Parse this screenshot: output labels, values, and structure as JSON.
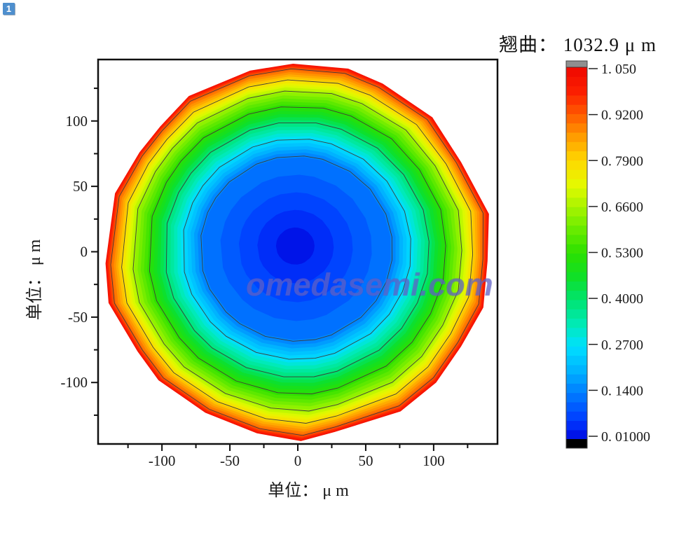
{
  "page": {
    "badge": "1"
  },
  "header": {
    "title": "翘曲： 1032.9 μ m"
  },
  "watermark": {
    "text": "omedasemi.com"
  },
  "chart_data": {
    "type": "filled_contour",
    "title": "翘曲： 1032.9 μ m",
    "value_name": "翘曲",
    "value": 1032.9,
    "value_unit": "μm",
    "xlabel": "单位： μ m",
    "ylabel": "单位： μ m",
    "xlim": [
      -147,
      147
    ],
    "ylim": [
      -147,
      147
    ],
    "x_ticks": [
      -100,
      -50,
      0,
      50,
      100
    ],
    "y_ticks": [
      100,
      50,
      0,
      -50,
      -100
    ],
    "minor_ticks": [
      -125,
      -75,
      -25,
      25,
      75,
      125
    ],
    "grid": false,
    "legend_position": "right-colorbar",
    "colorbar": {
      "tick_labels": [
        "1. 050",
        "0. 9200",
        "0. 7900",
        "0. 6600",
        "0. 5300",
        "0. 4000",
        "0. 2700",
        "0. 1400",
        "0. 01000"
      ],
      "tick_values": [
        1.05,
        0.92,
        0.79,
        0.66,
        0.53,
        0.4,
        0.27,
        0.14,
        0.01
      ],
      "vmin": 0.01,
      "vmax": 1.05,
      "above_max_color": "#8f8f8f",
      "below_min_color": "#000000",
      "segments": 40
    },
    "radial_profile": [
      [
        0.01,
        0
      ],
      [
        0.14,
        71
      ],
      [
        0.27,
        84.6
      ],
      [
        0.4,
        98
      ],
      [
        0.53,
        110.5
      ],
      [
        0.66,
        123
      ],
      [
        0.79,
        132
      ],
      [
        0.92,
        141
      ],
      [
        1.03,
        145
      ]
    ],
    "contour_line_levels": [
      0.14,
      0.27,
      0.4,
      0.53,
      0.66,
      0.79,
      0.92
    ],
    "fill_levels": 40,
    "max_fill_value": 1.03,
    "colormap": [
      [
        0.01,
        "#0008e0"
      ],
      [
        0.06,
        "#0038ff"
      ],
      [
        0.14,
        "#007eff"
      ],
      [
        0.2,
        "#00b2ff"
      ],
      [
        0.27,
        "#00e0ff"
      ],
      [
        0.33,
        "#00eab8"
      ],
      [
        0.4,
        "#00e470"
      ],
      [
        0.46,
        "#0ee02a"
      ],
      [
        0.53,
        "#2ce000"
      ],
      [
        0.6,
        "#6cec00"
      ],
      [
        0.66,
        "#a8f400"
      ],
      [
        0.72,
        "#e4fa00"
      ],
      [
        0.79,
        "#ffd800"
      ],
      [
        0.86,
        "#ff9800"
      ],
      [
        0.92,
        "#ff5a00"
      ],
      [
        0.98,
        "#fc2000"
      ],
      [
        1.05,
        "#ee0800"
      ]
    ]
  }
}
